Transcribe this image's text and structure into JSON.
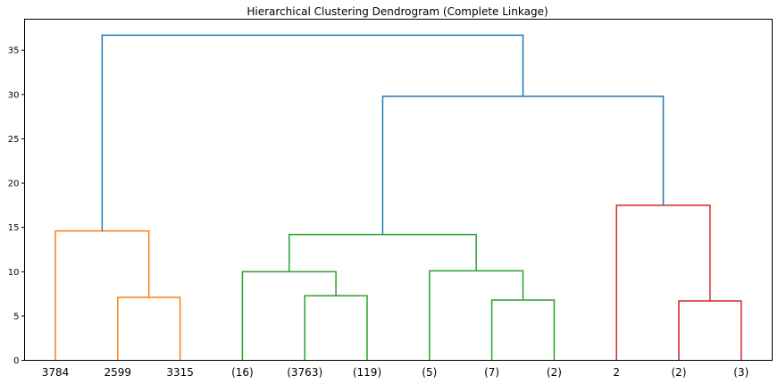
{
  "chart_data": {
    "type": "dendrogram",
    "title": "Hierarchical Clustering Dendrogram (Complete Linkage)",
    "xlabel": "",
    "ylabel": "",
    "ylim": [
      0,
      38.5
    ],
    "yticks": [
      0,
      5,
      10,
      15,
      20,
      25,
      30,
      35
    ],
    "grid": false,
    "leaves": [
      "3784",
      "2599",
      "3315",
      "(16)",
      "(3763)",
      "(119)",
      "(5)",
      "(7)",
      "(2)",
      "2",
      "(2)",
      "(3)"
    ],
    "colors": {
      "orange": "#ff7f0e",
      "green": "#2ca02c",
      "red": "#d62728",
      "blue": "#1f77b4"
    },
    "links": [
      {
        "left": "leaf:1",
        "right": "leaf:2",
        "height": 7.1,
        "color": "orange"
      },
      {
        "left": "leaf:0",
        "right": "node:0",
        "height": 14.6,
        "color": "orange"
      },
      {
        "left": "leaf:4",
        "right": "leaf:5",
        "height": 7.3,
        "color": "green"
      },
      {
        "left": "leaf:3",
        "right": "node:2",
        "height": 10.0,
        "color": "green"
      },
      {
        "left": "leaf:7",
        "right": "leaf:8",
        "height": 6.8,
        "color": "green"
      },
      {
        "left": "leaf:6",
        "right": "node:4",
        "height": 10.1,
        "color": "green"
      },
      {
        "left": "node:3",
        "right": "node:5",
        "height": 14.2,
        "color": "green"
      },
      {
        "left": "leaf:10",
        "right": "leaf:11",
        "height": 6.7,
        "color": "red"
      },
      {
        "left": "leaf:9",
        "right": "node:7",
        "height": 17.5,
        "color": "red"
      },
      {
        "left": "node:6",
        "right": "node:8",
        "height": 29.8,
        "color": "blue"
      },
      {
        "left": "node:1",
        "right": "node:9",
        "height": 36.7,
        "color": "blue"
      }
    ]
  }
}
